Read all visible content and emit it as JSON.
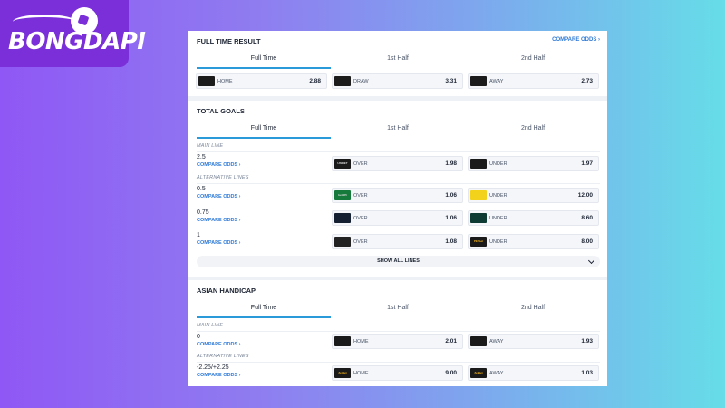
{
  "brand": {
    "logo_text": "BONGDAPI"
  },
  "colors": {
    "accent": "#2a9ad8",
    "link": "#2f7ad6"
  },
  "full_time_result": {
    "title": "FULL TIME RESULT",
    "compare_odds": "COMPARE ODDS ›",
    "tabs": [
      "Full Time",
      "1st Half",
      "2nd Half"
    ],
    "odds": [
      {
        "label": "HOME",
        "value": "2.88",
        "bookmaker_icon": "bookmaker-logo-dark"
      },
      {
        "label": "DRAW",
        "value": "3.31",
        "bookmaker_icon": "bookmaker-logo-dark"
      },
      {
        "label": "AWAY",
        "value": "2.73",
        "bookmaker_icon": "bookmaker-logo-dark"
      }
    ]
  },
  "total_goals": {
    "title": "TOTAL GOALS",
    "tabs": [
      "Full Time",
      "1st Half",
      "2nd Half"
    ],
    "main_line_label": "MAIN LINE",
    "alt_lines_label": "ALTERNATIVE LINES",
    "show_all": "SHOW ALL LINES",
    "rows": [
      {
        "line": "2.5",
        "compare": "COMPARE ODDS ›",
        "over": {
          "label": "OVER",
          "value": "1.98",
          "logo": "UNIBET",
          "logo_color": "#1a1a1a"
        },
        "under": {
          "label": "UNDER",
          "value": "1.97",
          "logo": "",
          "logo_color": "#1a1a1a"
        }
      },
      {
        "line": "0.5",
        "compare": "COMPARE ODDS ›",
        "over": {
          "label": "OVER",
          "value": "1.06",
          "logo": "bet365",
          "logo_color": "#157a3c"
        },
        "under": {
          "label": "UNDER",
          "value": "12.00",
          "logo": "",
          "logo_color": "#f3d21b"
        }
      },
      {
        "line": "0.75",
        "compare": "COMPARE ODDS ›",
        "over": {
          "label": "OVER",
          "value": "1.06",
          "logo": "",
          "logo_color": "#162033"
        },
        "under": {
          "label": "UNDER",
          "value": "8.60",
          "logo": "",
          "logo_color": "#0f3b35"
        }
      },
      {
        "line": "1",
        "compare": "COMPARE ODDS ›",
        "over": {
          "label": "OVER",
          "value": "1.08",
          "logo": "",
          "logo_color": "#222222"
        },
        "under": {
          "label": "UNDER",
          "value": "8.00",
          "logo": "PEZbet",
          "logo_color": "#1a1a1a"
        }
      }
    ]
  },
  "asian_handicap": {
    "title": "ASIAN HANDICAP",
    "tabs": [
      "Full Time",
      "1st Half",
      "2nd Half"
    ],
    "main_line_label": "MAIN LINE",
    "alt_lines_label": "ALTERNATIVE LINES",
    "rows": [
      {
        "line": "0",
        "compare": "COMPARE ODDS ›",
        "home": {
          "label": "HOME",
          "value": "2.01",
          "logo": "",
          "logo_color": "#1a1a1a"
        },
        "away": {
          "label": "AWAY",
          "value": "1.93",
          "logo": "",
          "logo_color": "#1a1a1a"
        }
      },
      {
        "line": "-2.25/+2.25",
        "compare": "COMPARE ODDS ›",
        "home": {
          "label": "HOME",
          "value": "9.00",
          "logo": "ZetBet",
          "logo_color": "#1a1a1a"
        },
        "away": {
          "label": "AWAY",
          "value": "1.03",
          "logo": "ZetBet",
          "logo_color": "#1a1a1a"
        }
      }
    ]
  }
}
